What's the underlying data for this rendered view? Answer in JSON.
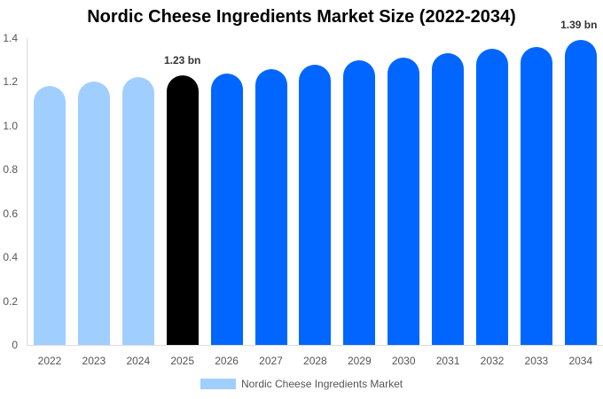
{
  "chart_data": {
    "type": "bar",
    "title": "Nordic Cheese Ingredients Market Size (2022-2034)",
    "xlabel": "",
    "ylabel": "",
    "ylim": [
      0,
      1.4
    ],
    "yticks": [
      "0",
      "0.2",
      "0.4",
      "0.6",
      "0.8",
      "1.0",
      "1.2",
      "1.4"
    ],
    "categories": [
      "2022",
      "2023",
      "2024",
      "2025",
      "2026",
      "2027",
      "2028",
      "2029",
      "2030",
      "2031",
      "2032",
      "2033",
      "2034"
    ],
    "series": [
      {
        "name": "Nordic Cheese Ingredients Market",
        "values": [
          1.18,
          1.2,
          1.22,
          1.23,
          1.24,
          1.26,
          1.28,
          1.3,
          1.31,
          1.33,
          1.35,
          1.36,
          1.39
        ]
      }
    ],
    "bar_colors": [
      "#a0cfff",
      "#a0cfff",
      "#a0cfff",
      "#000000",
      "#0066ff",
      "#0066ff",
      "#0066ff",
      "#0066ff",
      "#0066ff",
      "#0066ff",
      "#0066ff",
      "#0066ff",
      "#0066ff"
    ],
    "annotations": [
      {
        "category": "2025",
        "text": "1.23 bn"
      },
      {
        "category": "2034",
        "text": "1.39 bn"
      }
    ],
    "grid": false,
    "legend_position": "bottom"
  },
  "legend": {
    "label": "Nordic Cheese Ingredients Market",
    "color": "#a0cfff"
  }
}
